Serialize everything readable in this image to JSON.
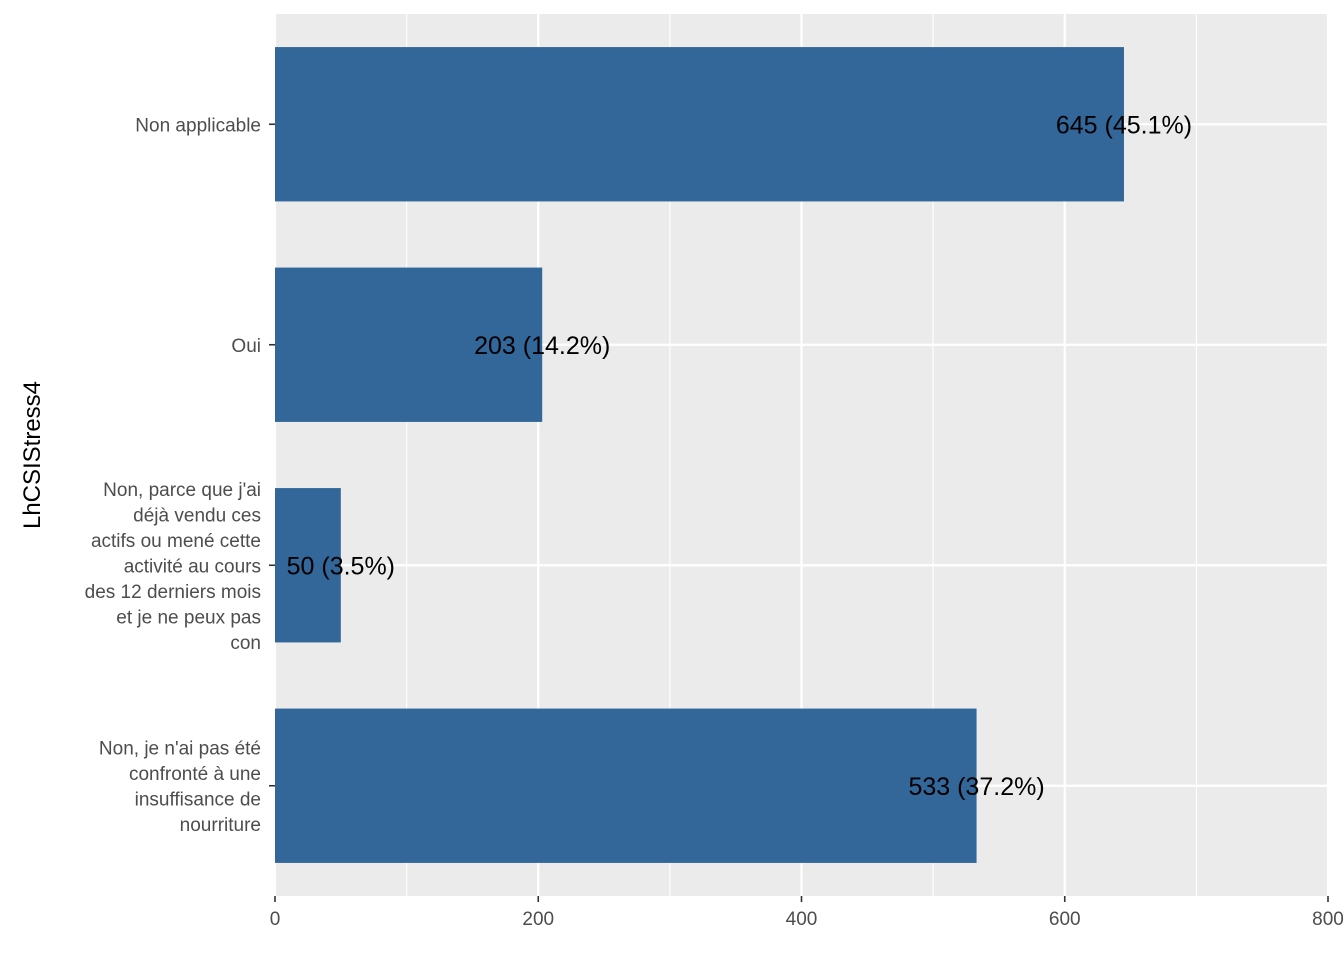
{
  "chart_data": {
    "type": "bar",
    "orientation": "horizontal",
    "ylabel": "LhCSIStress4",
    "xlabel": "",
    "xlim": [
      0,
      800
    ],
    "xticks": [
      "0",
      "200",
      "400",
      "600",
      "800"
    ],
    "grid": true,
    "categories": [
      {
        "lines": [
          "Non applicable"
        ]
      },
      {
        "lines": [
          "Oui"
        ]
      },
      {
        "lines": [
          "Non, parce que j'ai",
          "déjà vendu ces",
          "actifs ou mené cette",
          "activité au cours",
          "des 12 derniers mois",
          "et je ne peux pas",
          "con"
        ]
      },
      {
        "lines": [
          "Non, je n'ai pas été",
          "confronté à une",
          "insuffisance de",
          "nourriture"
        ]
      }
    ],
    "values": [
      645,
      203,
      50,
      533
    ],
    "data_labels": [
      "645 (45.1%)",
      "203 (14.2%)",
      "50 (3.5%)",
      "533 (37.2%)"
    ],
    "colors": {
      "bar": "#336699",
      "panel": "#ebebeb",
      "grid": "#ffffff"
    }
  }
}
